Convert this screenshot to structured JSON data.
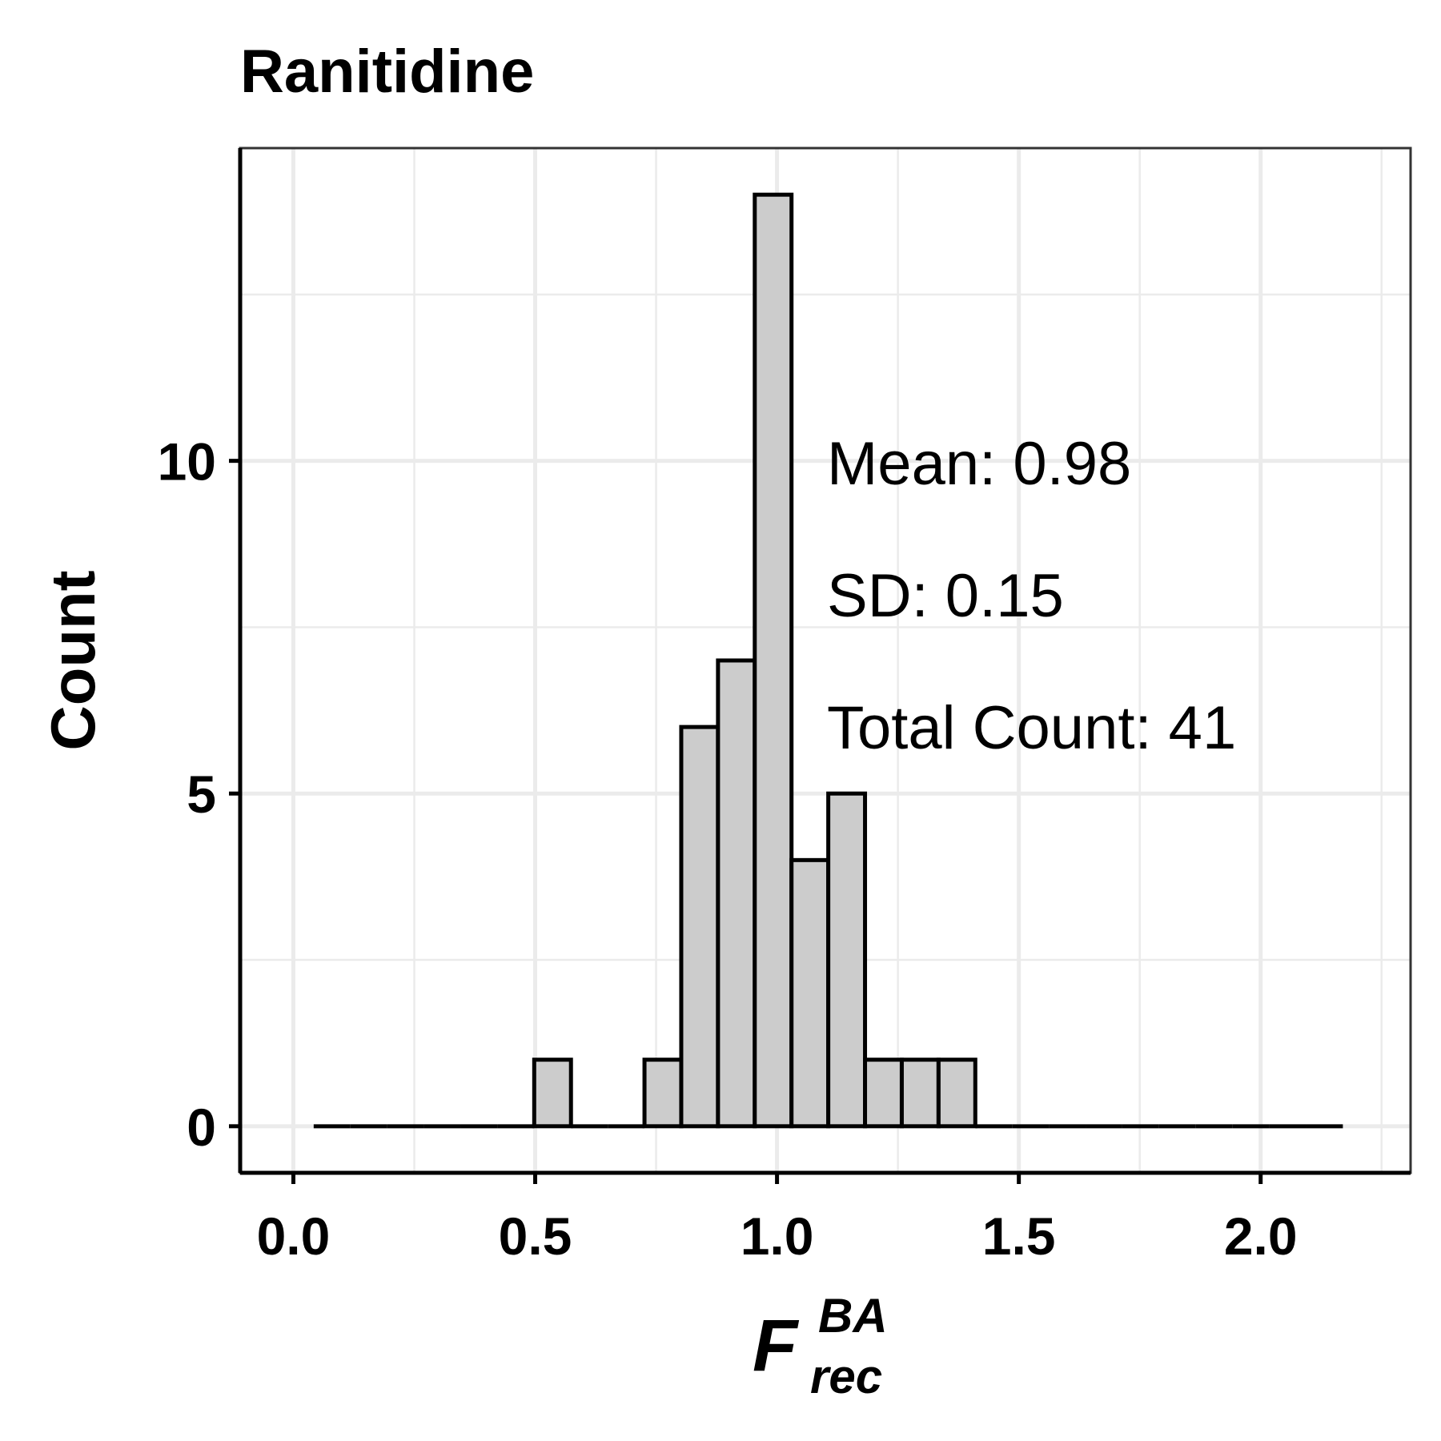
{
  "chart_data": {
    "type": "bar",
    "title": "Ranitidine",
    "ylabel": "Count",
    "xlabel": {
      "symbol": "F",
      "superscript": "BA",
      "subscript": "rec"
    },
    "bin_width": 0.076,
    "x_ticks": [
      "0.0",
      "0.5",
      "1.0",
      "1.5",
      "2.0"
    ],
    "y_ticks": [
      "0",
      "5",
      "10"
    ],
    "xlim": [
      -0.11,
      2.31
    ],
    "ylim": [
      -0.7,
      14.7
    ],
    "grid": true,
    "bin_centers": [
      0.08,
      0.156,
      0.232,
      0.308,
      0.384,
      0.46,
      0.536,
      0.612,
      0.688,
      0.764,
      0.84,
      0.916,
      0.992,
      1.068,
      1.144,
      1.22,
      1.296,
      1.372,
      1.448,
      1.524,
      1.6,
      1.676,
      1.752,
      1.828,
      1.904,
      1.98,
      2.056,
      2.132
    ],
    "values": [
      0,
      0,
      0,
      0,
      0,
      0,
      1,
      0,
      0,
      1,
      6,
      7,
      14,
      4,
      5,
      1,
      1,
      1,
      0,
      0,
      0,
      0,
      0,
      0,
      0,
      0,
      0,
      0
    ],
    "colors": {
      "bar_fill": "#cccccc",
      "bar_stroke": "#000000",
      "grid": "#ebebeb",
      "panel_border": "#333333"
    },
    "annotations": [
      "Mean: 0.98",
      "SD: 0.15",
      "Total Count: 41"
    ]
  }
}
